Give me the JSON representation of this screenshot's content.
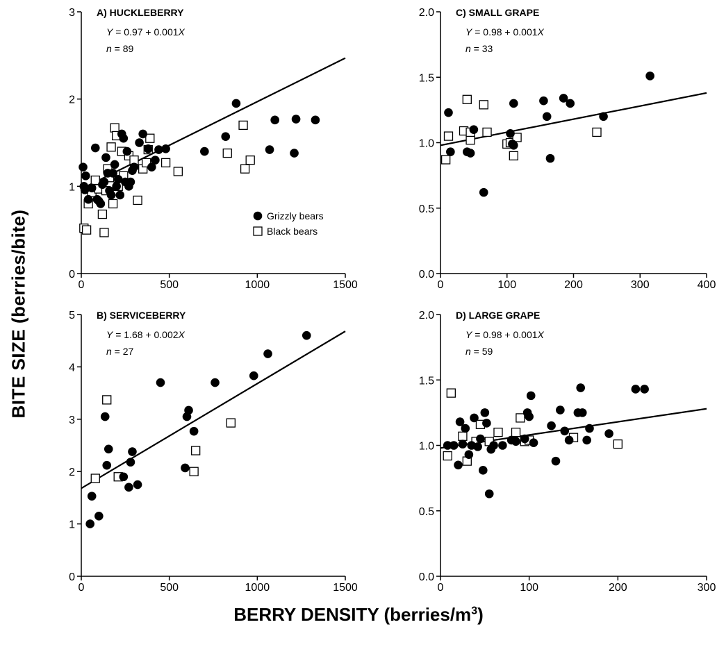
{
  "figure": {
    "ylabel": "BITE  SIZE  (berries/bite)",
    "xlabel_main": "BERRY DENSITY (berries/m",
    "xlabel_sup": "3",
    "xlabel_end": ")"
  },
  "legend": {
    "items": [
      {
        "label": "Grizzly bears",
        "marker": "filled-circle"
      },
      {
        "label": "Black bears",
        "marker": "open-square"
      }
    ]
  },
  "chart_data": [
    {
      "type": "scatter",
      "title": "A) HUCKLEBERRY",
      "equation_prefix": "Y",
      "equation_body": " = 0.97 + 0.001",
      "equation_var": "X",
      "n_prefix": "n",
      "n_value": " = 89",
      "xlim": [
        0,
        1500
      ],
      "ylim": [
        0,
        3
      ],
      "xticks": [
        0,
        500,
        1000,
        1500
      ],
      "yticks": [
        0,
        1,
        2,
        3
      ],
      "xtick_labels": [
        "0",
        "500",
        "1000",
        "1500"
      ],
      "ytick_labels": [
        "0",
        "1",
        "2",
        "3"
      ],
      "fit": {
        "intercept": 0.97,
        "slope": 0.001,
        "x_range": [
          0,
          1500
        ]
      },
      "series": [
        {
          "name": "Grizzly bears",
          "marker": "circle",
          "points": [
            [
              10,
              1.22
            ],
            [
              15,
              1.0
            ],
            [
              20,
              0.96
            ],
            [
              25,
              1.12
            ],
            [
              40,
              0.85
            ],
            [
              60,
              0.98
            ],
            [
              80,
              1.44
            ],
            [
              90,
              0.85
            ],
            [
              100,
              0.83
            ],
            [
              110,
              0.8
            ],
            [
              120,
              1.02
            ],
            [
              130,
              1.05
            ],
            [
              140,
              1.33
            ],
            [
              150,
              1.15
            ],
            [
              160,
              0.95
            ],
            [
              170,
              0.9
            ],
            [
              180,
              1.15
            ],
            [
              190,
              1.25
            ],
            [
              200,
              1.0
            ],
            [
              210,
              1.08
            ],
            [
              220,
              0.9
            ],
            [
              230,
              1.6
            ],
            [
              240,
              1.55
            ],
            [
              250,
              1.05
            ],
            [
              260,
              1.4
            ],
            [
              270,
              1.0
            ],
            [
              280,
              1.05
            ],
            [
              290,
              1.18
            ],
            [
              300,
              1.22
            ],
            [
              330,
              1.5
            ],
            [
              350,
              1.6
            ],
            [
              380,
              1.43
            ],
            [
              400,
              1.22
            ],
            [
              420,
              1.3
            ],
            [
              440,
              1.42
            ],
            [
              480,
              1.43
            ],
            [
              700,
              1.4
            ],
            [
              820,
              1.57
            ],
            [
              880,
              1.95
            ],
            [
              1070,
              1.42
            ],
            [
              1100,
              1.76
            ],
            [
              1210,
              1.38
            ],
            [
              1220,
              1.77
            ],
            [
              1330,
              1.76
            ]
          ]
        },
        {
          "name": "Black bears",
          "marker": "square",
          "points": [
            [
              15,
              0.52
            ],
            [
              30,
              0.5
            ],
            [
              40,
              0.8
            ],
            [
              60,
              0.93
            ],
            [
              80,
              1.07
            ],
            [
              100,
              0.97
            ],
            [
              120,
              0.68
            ],
            [
              130,
              0.47
            ],
            [
              140,
              0.95
            ],
            [
              150,
              1.2
            ],
            [
              160,
              1.1
            ],
            [
              170,
              1.45
            ],
            [
              180,
              0.8
            ],
            [
              190,
              1.67
            ],
            [
              200,
              1.58
            ],
            [
              210,
              1.0
            ],
            [
              230,
              1.4
            ],
            [
              240,
              1.12
            ],
            [
              270,
              1.35
            ],
            [
              300,
              1.3
            ],
            [
              320,
              0.84
            ],
            [
              350,
              1.2
            ],
            [
              370,
              1.27
            ],
            [
              380,
              1.42
            ],
            [
              390,
              1.55
            ],
            [
              480,
              1.27
            ],
            [
              550,
              1.17
            ],
            [
              830,
              1.38
            ],
            [
              920,
              1.7
            ],
            [
              930,
              1.2
            ],
            [
              960,
              1.3
            ]
          ]
        }
      ]
    },
    {
      "type": "scatter",
      "title": "C) SMALL  GRAPE",
      "equation_prefix": "Y",
      "equation_body": " = 0.98 + 0.001",
      "equation_var": "X",
      "n_prefix": "n",
      "n_value": " = 33",
      "xlim": [
        0,
        400
      ],
      "ylim": [
        0,
        2.0
      ],
      "xticks": [
        0,
        100,
        200,
        300,
        400
      ],
      "yticks": [
        0,
        0.5,
        1.0,
        1.5,
        2.0
      ],
      "xtick_labels": [
        "0",
        "100",
        "200",
        "300",
        "400"
      ],
      "ytick_labels": [
        "0.0",
        "0.5",
        "1.0",
        "1.5",
        "2.0"
      ],
      "fit": {
        "intercept": 0.98,
        "slope": 0.001,
        "x_range": [
          0,
          400
        ]
      },
      "series": [
        {
          "name": "Grizzly bears",
          "marker": "circle",
          "points": [
            [
              12,
              1.23
            ],
            [
              15,
              0.93
            ],
            [
              40,
              0.93
            ],
            [
              45,
              0.92
            ],
            [
              50,
              1.1
            ],
            [
              65,
              0.62
            ],
            [
              105,
              1.07
            ],
            [
              108,
              0.99
            ],
            [
              110,
              0.98
            ],
            [
              110,
              1.3
            ],
            [
              155,
              1.32
            ],
            [
              160,
              1.2
            ],
            [
              165,
              0.88
            ],
            [
              185,
              1.34
            ],
            [
              195,
              1.3
            ],
            [
              245,
              1.2
            ],
            [
              315,
              1.51
            ]
          ]
        },
        {
          "name": "Black bears",
          "marker": "square",
          "points": [
            [
              8,
              0.87
            ],
            [
              12,
              1.05
            ],
            [
              35,
              1.09
            ],
            [
              40,
              1.33
            ],
            [
              45,
              1.02
            ],
            [
              45,
              1.08
            ],
            [
              65,
              1.29
            ],
            [
              70,
              1.08
            ],
            [
              100,
              0.99
            ],
            [
              105,
              1.0
            ],
            [
              110,
              0.9
            ],
            [
              115,
              1.04
            ],
            [
              235,
              1.08
            ]
          ]
        }
      ]
    },
    {
      "type": "scatter",
      "title": "B) SERVICEBERRY",
      "equation_prefix": "Y",
      "equation_body": " = 1.68 + 0.002",
      "equation_var": "X",
      "n_prefix": "n",
      "n_value": " = 27",
      "xlim": [
        0,
        1500
      ],
      "ylim": [
        0,
        5
      ],
      "xticks": [
        0,
        500,
        1000,
        1500
      ],
      "yticks": [
        0,
        1,
        2,
        3,
        4,
        5
      ],
      "xtick_labels": [
        "0",
        "500",
        "1000",
        "1500"
      ],
      "ytick_labels": [
        "0",
        "1",
        "2",
        "3",
        "4",
        "5"
      ],
      "fit": {
        "intercept": 1.68,
        "slope": 0.002,
        "x_range": [
          0,
          1500
        ]
      },
      "series": [
        {
          "name": "Grizzly bears",
          "marker": "circle",
          "points": [
            [
              50,
              1.0
            ],
            [
              60,
              1.53
            ],
            [
              100,
              1.15
            ],
            [
              135,
              3.05
            ],
            [
              145,
              2.12
            ],
            [
              155,
              2.43
            ],
            [
              240,
              1.9
            ],
            [
              270,
              1.7
            ],
            [
              280,
              2.18
            ],
            [
              290,
              2.38
            ],
            [
              320,
              1.75
            ],
            [
              450,
              3.7
            ],
            [
              590,
              2.07
            ],
            [
              600,
              3.05
            ],
            [
              610,
              3.17
            ],
            [
              640,
              2.77
            ],
            [
              760,
              3.7
            ],
            [
              980,
              3.83
            ],
            [
              1060,
              4.25
            ],
            [
              1280,
              4.6
            ]
          ]
        },
        {
          "name": "Black bears",
          "marker": "square",
          "points": [
            [
              80,
              1.87
            ],
            [
              145,
              3.37
            ],
            [
              210,
              1.9
            ],
            [
              640,
              2.0
            ],
            [
              650,
              2.4
            ],
            [
              850,
              2.93
            ]
          ]
        }
      ]
    },
    {
      "type": "scatter",
      "title": "D) LARGE  GRAPE",
      "equation_prefix": "Y",
      "equation_body": " = 0.98 + 0.001",
      "equation_var": "X",
      "n_prefix": "n",
      "n_value": " = 59",
      "xlim": [
        0,
        300
      ],
      "ylim": [
        0,
        2.0
      ],
      "xticks": [
        0,
        100,
        200,
        300
      ],
      "yticks": [
        0,
        0.5,
        1.0,
        1.5,
        2.0
      ],
      "xtick_labels": [
        "0",
        "100",
        "200",
        "300"
      ],
      "ytick_labels": [
        "0.0",
        "0.5",
        "1.0",
        "1.5",
        "2.0"
      ],
      "fit": {
        "intercept": 0.98,
        "slope": 0.001,
        "x_range": [
          0,
          300
        ]
      },
      "series": [
        {
          "name": "Grizzly bears",
          "marker": "circle",
          "points": [
            [
              8,
              1.0
            ],
            [
              15,
              1.0
            ],
            [
              20,
              0.85
            ],
            [
              22,
              1.18
            ],
            [
              25,
              1.01
            ],
            [
              28,
              1.13
            ],
            [
              32,
              0.93
            ],
            [
              35,
              1.0
            ],
            [
              38,
              1.21
            ],
            [
              42,
              0.99
            ],
            [
              45,
              1.05
            ],
            [
              48,
              0.81
            ],
            [
              50,
              1.25
            ],
            [
              52,
              1.17
            ],
            [
              55,
              0.63
            ],
            [
              57,
              0.97
            ],
            [
              60,
              1.0
            ],
            [
              70,
              1.0
            ],
            [
              80,
              1.04
            ],
            [
              85,
              1.03
            ],
            [
              95,
              1.05
            ],
            [
              98,
              1.25
            ],
            [
              100,
              1.22
            ],
            [
              102,
              1.38
            ],
            [
              105,
              1.02
            ],
            [
              125,
              1.15
            ],
            [
              130,
              0.88
            ],
            [
              135,
              1.27
            ],
            [
              140,
              1.11
            ],
            [
              145,
              1.04
            ],
            [
              155,
              1.25
            ],
            [
              158,
              1.44
            ],
            [
              160,
              1.25
            ],
            [
              165,
              1.04
            ],
            [
              168,
              1.13
            ],
            [
              190,
              1.09
            ],
            [
              220,
              1.43
            ],
            [
              230,
              1.43
            ]
          ]
        },
        {
          "name": "Black bears",
          "marker": "square",
          "points": [
            [
              8,
              0.92
            ],
            [
              12,
              1.4
            ],
            [
              25,
              1.07
            ],
            [
              30,
              0.88
            ],
            [
              40,
              1.03
            ],
            [
              45,
              1.16
            ],
            [
              55,
              1.03
            ],
            [
              65,
              1.1
            ],
            [
              85,
              1.1
            ],
            [
              90,
              1.21
            ],
            [
              95,
              1.03
            ],
            [
              100,
              1.04
            ],
            [
              150,
              1.06
            ],
            [
              200,
              1.01
            ]
          ]
        }
      ]
    }
  ]
}
